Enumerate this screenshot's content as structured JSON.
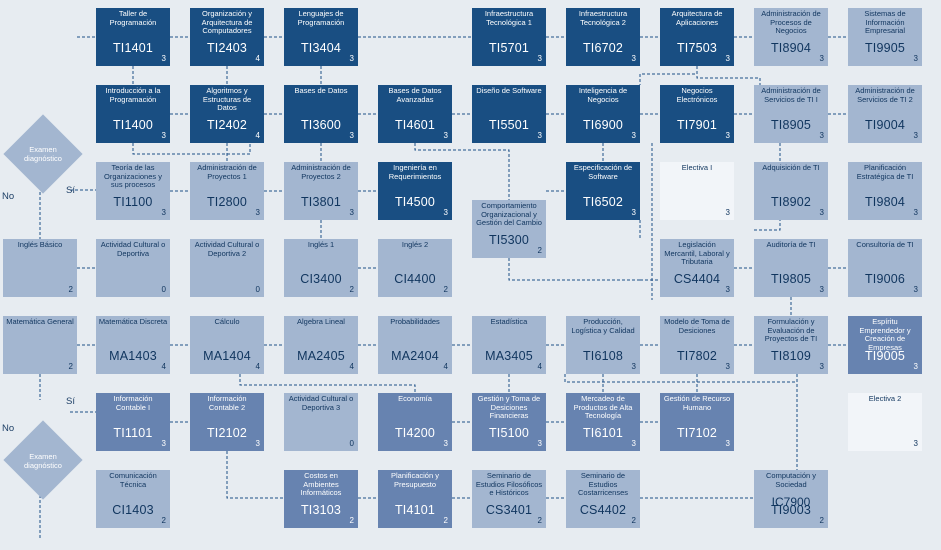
{
  "colors": {
    "dark": "#194e82",
    "mid": "#6783b0",
    "light": "#a3b6d0",
    "pale": "#f2f5f9",
    "background": "#e7ecf1"
  },
  "decision_top": {
    "label": "Examen diagnóstico",
    "no": "No",
    "si": "Sí"
  },
  "decision_bottom": {
    "label": "Examen diagnóstico",
    "no": "No",
    "si": "Sí"
  },
  "courses": [
    {
      "id": "ti1401",
      "name": "Taller de Programación",
      "code": "TI1401",
      "credits": "3",
      "shade": "dark"
    },
    {
      "id": "ti2403",
      "name": "Organización y Arquitectura de Computadores",
      "code": "TI2403",
      "credits": "4",
      "shade": "dark"
    },
    {
      "id": "ti3404",
      "name": "Lenguajes de Programación",
      "code": "TI3404",
      "credits": "3",
      "shade": "dark"
    },
    {
      "id": "ti5701",
      "name": "Infraestructura Tecnológica 1",
      "code": "TI5701",
      "credits": "3",
      "shade": "dark"
    },
    {
      "id": "ti6702",
      "name": "Infraestructura Tecnológica 2",
      "code": "TI6702",
      "credits": "3",
      "shade": "dark"
    },
    {
      "id": "ti7503",
      "name": "Arquitectura de Aplicaciones",
      "code": "TI7503",
      "credits": "3",
      "shade": "dark"
    },
    {
      "id": "ti8904",
      "name": "Administración de Procesos de Negocios",
      "code": "TI8904",
      "credits": "3",
      "shade": "light"
    },
    {
      "id": "ti9905",
      "name": "Sistemas de Información Empresarial",
      "code": "TI9905",
      "credits": "3",
      "shade": "light"
    },
    {
      "id": "ti1400",
      "name": "Introducción a la Programación",
      "code": "TI1400",
      "credits": "3",
      "shade": "dark"
    },
    {
      "id": "ti2402",
      "name": "Algoritmos y Estructuras de Datos",
      "code": "TI2402",
      "credits": "4",
      "shade": "dark"
    },
    {
      "id": "ti3600",
      "name": "Bases de Datos",
      "code": "TI3600",
      "credits": "3",
      "shade": "dark"
    },
    {
      "id": "ti4601",
      "name": "Bases de Datos Avanzadas",
      "code": "TI4601",
      "credits": "3",
      "shade": "dark"
    },
    {
      "id": "ti5501",
      "name": "Diseño de Software",
      "code": "TI5501",
      "credits": "3",
      "shade": "dark"
    },
    {
      "id": "ti6900",
      "name": "Inteligencia de Negocios",
      "code": "TI6900",
      "credits": "3",
      "shade": "dark"
    },
    {
      "id": "ti7901",
      "name": "Negocios Electrónicos",
      "code": "TI7901",
      "credits": "3",
      "shade": "dark"
    },
    {
      "id": "ti8905",
      "name": "Administración de Servicios de TI I",
      "code": "TI8905",
      "credits": "3",
      "shade": "light"
    },
    {
      "id": "ti9004",
      "name": "Administración de Servicios de TI 2",
      "code": "TI9004",
      "credits": "3",
      "shade": "light"
    },
    {
      "id": "ti1100",
      "name": "Teoría de las Organizaciones y sus procesos",
      "code": "TI1100",
      "credits": "3",
      "shade": "light"
    },
    {
      "id": "ti2800",
      "name": "Administración de Proyectos 1",
      "code": "TI2800",
      "credits": "3",
      "shade": "light"
    },
    {
      "id": "ti3801",
      "name": "Administración de Proyectos 2",
      "code": "TI3801",
      "credits": "3",
      "shade": "light"
    },
    {
      "id": "ti4500",
      "name": "Ingeniería en Requerimientos",
      "code": "TI4500",
      "credits": "3",
      "shade": "dark"
    },
    {
      "id": "ti5300",
      "name": "Comportamiento Organizacional y Gestión del Cambio",
      "code": "TI5300",
      "credits": "2",
      "shade": "light"
    },
    {
      "id": "ti6502",
      "name": "Especificación de Software",
      "code": "TI6502",
      "credits": "3",
      "shade": "dark"
    },
    {
      "id": "electiva1",
      "name": "Electiva I",
      "code": "",
      "credits": "3",
      "shade": "pale"
    },
    {
      "id": "ti8902",
      "name": "Adquisición de TI",
      "code": "TI8902",
      "credits": "3",
      "shade": "light"
    },
    {
      "id": "ti9804",
      "name": "Planificación Estratégica de TI",
      "code": "TI9804",
      "credits": "3",
      "shade": "light"
    },
    {
      "id": "ingles-basico",
      "name": "Inglés Básico",
      "code": "",
      "credits": "2",
      "shade": "light"
    },
    {
      "id": "act1",
      "name": "Actividad Cultural o Deportiva",
      "code": "",
      "credits": "0",
      "shade": "light"
    },
    {
      "id": "act2",
      "name": "Actividad Cultural o Deportiva 2",
      "code": "",
      "credits": "0",
      "shade": "light"
    },
    {
      "id": "ci3400",
      "name": "Inglés 1",
      "code": "CI3400",
      "credits": "2",
      "shade": "light"
    },
    {
      "id": "ci4400",
      "name": "Inglés 2",
      "code": "CI4400",
      "credits": "2",
      "shade": "light"
    },
    {
      "id": "cs4404",
      "name": "Legislación Mercantil, Laboral y Tributaria",
      "code": "CS4404",
      "credits": "3",
      "shade": "light"
    },
    {
      "id": "ti9805",
      "name": "Auditoría de TI",
      "code": "TI9805",
      "credits": "3",
      "shade": "light"
    },
    {
      "id": "ti9006",
      "name": "Consultoría de TI",
      "code": "TI9006",
      "credits": "3",
      "shade": "light"
    },
    {
      "id": "mat-general",
      "name": "Matemática General",
      "code": "",
      "credits": "2",
      "shade": "light"
    },
    {
      "id": "ma1403",
      "name": "Matemática Discreta",
      "code": "MA1403",
      "credits": "4",
      "shade": "light"
    },
    {
      "id": "ma1404",
      "name": "Cálculo",
      "code": "MA1404",
      "credits": "4",
      "shade": "light"
    },
    {
      "id": "ma2405",
      "name": "Algebra Lineal",
      "code": "MA2405",
      "credits": "4",
      "shade": "light"
    },
    {
      "id": "ma2404",
      "name": "Probabilidades",
      "code": "MA2404",
      "credits": "4",
      "shade": "light"
    },
    {
      "id": "ma3405",
      "name": "Estadística",
      "code": "MA3405",
      "credits": "4",
      "shade": "light"
    },
    {
      "id": "ti6108",
      "name": "Producción, Logística y Calidad",
      "code": "TI6108",
      "credits": "3",
      "shade": "light"
    },
    {
      "id": "ti7802",
      "name": "Modelo de Toma de Desiciones",
      "code": "TI7802",
      "credits": "3",
      "shade": "light"
    },
    {
      "id": "ti8109",
      "name": "Formulación y Evaluación de Proyectos de TI",
      "code": "TI8109",
      "credits": "3",
      "shade": "light"
    },
    {
      "id": "ti9005",
      "name": "Espíritu Emprendedor y Creación de Empresas",
      "code": "TI9005",
      "credits": "3",
      "shade": "mid"
    },
    {
      "id": "ti1101",
      "name": "Información Contable I",
      "code": "TI1101",
      "credits": "3",
      "shade": "mid"
    },
    {
      "id": "ti2102",
      "name": "Información Contable 2",
      "code": "TI2102",
      "credits": "3",
      "shade": "mid"
    },
    {
      "id": "act3",
      "name": "Actividad Cultural o Deportiva 3",
      "code": "",
      "credits": "0",
      "shade": "light"
    },
    {
      "id": "ti4200",
      "name": "Economía",
      "code": "TI4200",
      "credits": "3",
      "shade": "mid"
    },
    {
      "id": "ti5100",
      "name": "Gestión y Toma de Desiciones Financieras",
      "code": "TI5100",
      "credits": "3",
      "shade": "mid"
    },
    {
      "id": "ti6101",
      "name": "Mercadeo de Productos de Alta Tecnología",
      "code": "TI6101",
      "credits": "3",
      "shade": "mid"
    },
    {
      "id": "ti7102",
      "name": "Gestión de Recurso Humano",
      "code": "TI7102",
      "credits": "3",
      "shade": "mid"
    },
    {
      "id": "electiva2",
      "name": "Electiva 2",
      "code": "",
      "credits": "3",
      "shade": "pale"
    },
    {
      "id": "ci1403",
      "name": "Comunicación Técnica",
      "code": "CI1403",
      "credits": "2",
      "shade": "light"
    },
    {
      "id": "ti3103",
      "name": "Costos en Ambientes Informáticos",
      "code": "TI3103",
      "credits": "2",
      "shade": "mid"
    },
    {
      "id": "ti4101",
      "name": "Planificación y Presupuesto",
      "code": "TI4101",
      "credits": "2",
      "shade": "mid"
    },
    {
      "id": "cs3401",
      "name": "Seminario de Estudios Filosóficos e Históricos",
      "code": "CS3401",
      "credits": "2",
      "shade": "light"
    },
    {
      "id": "cs4402",
      "name": "Seminario de Estudios Costarricenses",
      "code": "CS4402",
      "credits": "2",
      "shade": "light"
    },
    {
      "id": "ic7900",
      "name": "Computación y Sociedad",
      "code": "IC7900",
      "code2": "TI9003",
      "credits": "2",
      "shade": "light"
    }
  ]
}
